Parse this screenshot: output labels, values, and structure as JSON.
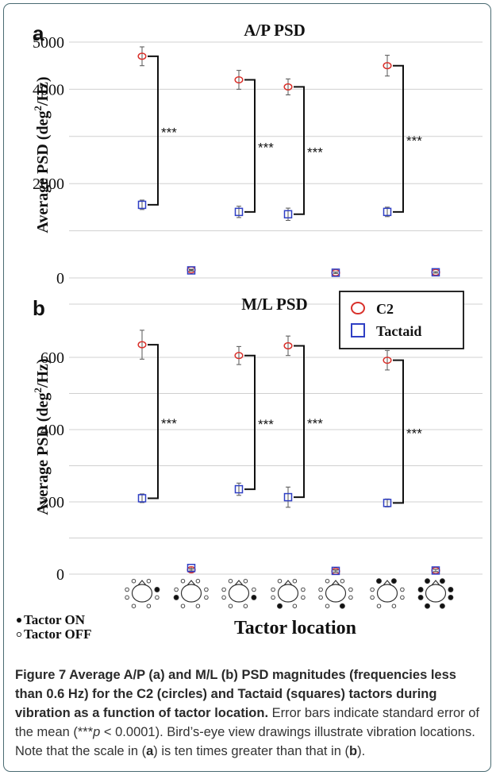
{
  "chart_data": [
    {
      "panel_label": "a",
      "type": "scatter",
      "title": "A/P PSD",
      "ylabel": "Average PSD (deg²/Hz)",
      "ylabel_main": "Average PSD (deg",
      "ylabel_sup": "2",
      "ylabel_end": "/Hz)",
      "ylim": [
        0,
        5000
      ],
      "yticks": [
        "0",
        "2000",
        "4000",
        "5000"
      ],
      "ytick_values": [
        0,
        2000,
        4000,
        5000
      ],
      "grid": true,
      "categories": [
        "1",
        "2",
        "3",
        "4",
        "5",
        "6",
        "7"
      ],
      "series": [
        {
          "name": "C2",
          "marker": "circle",
          "color": "#d9312b",
          "values": [
            4700,
            170,
            4200,
            4050,
            110,
            4500,
            120
          ],
          "errors": [
            200,
            15,
            200,
            170,
            15,
            220,
            15
          ]
        },
        {
          "name": "Tactaid",
          "marker": "square",
          "color": "#2f3fc4",
          "values": [
            1550,
            160,
            1400,
            1350,
            110,
            1400,
            120
          ],
          "errors": [
            100,
            15,
            120,
            130,
            15,
            100,
            15
          ]
        }
      ],
      "significance": [
        {
          "category": 0,
          "label": "***"
        },
        {
          "category": 2,
          "label": "***"
        },
        {
          "category": 3,
          "label": "***"
        },
        {
          "category": 5,
          "label": "***"
        }
      ]
    },
    {
      "panel_label": "b",
      "type": "scatter",
      "title": "M/L PSD",
      "ylabel": "Average PSD (deg²/Hz)",
      "ylabel_main": "Average PSD (deg",
      "ylabel_sup": "2",
      "ylabel_end": "/Hz)",
      "ylim": [
        0,
        700
      ],
      "yticks": [
        "0",
        "200",
        "400",
        "600"
      ],
      "ytick_values": [
        0,
        200,
        400,
        600
      ],
      "grid": true,
      "xlabel": "Tactor location",
      "legend_position": "top-right",
      "categories": [
        "1",
        "2",
        "3",
        "4",
        "5",
        "6",
        "7"
      ],
      "series": [
        {
          "name": "C2",
          "marker": "circle",
          "color": "#d9312b",
          "values": [
            635,
            12,
            605,
            632,
            8,
            592,
            10
          ],
          "errors": [
            40,
            3,
            25,
            27,
            3,
            27,
            3
          ]
        },
        {
          "name": "Tactaid",
          "marker": "square",
          "color": "#2f3fc4",
          "values": [
            210,
            17,
            235,
            213,
            9,
            197,
            10
          ],
          "errors": [
            12,
            3,
            17,
            28,
            3,
            11,
            3
          ]
        }
      ],
      "significance": [
        {
          "category": 0,
          "label": "***"
        },
        {
          "category": 2,
          "label": "***"
        },
        {
          "category": 3,
          "label": "***"
        },
        {
          "category": 5,
          "label": "***"
        }
      ]
    }
  ],
  "legend": {
    "c2": "C2",
    "tactaid": "Tactaid"
  },
  "tactor_legend": {
    "on": "Tactor ON",
    "off": "Tactor OFF"
  },
  "tactor_patterns": [
    [
      0,
      0,
      0,
      1,
      0,
      0,
      0,
      0
    ],
    [
      0,
      0,
      0,
      0,
      1,
      0,
      0,
      0
    ],
    [
      0,
      0,
      0,
      0,
      0,
      1,
      0,
      0
    ],
    [
      0,
      0,
      0,
      0,
      0,
      0,
      1,
      0
    ],
    [
      0,
      0,
      0,
      0,
      0,
      0,
      0,
      1
    ],
    [
      1,
      1,
      0,
      0,
      0,
      0,
      0,
      0
    ],
    [
      1,
      1,
      1,
      1,
      1,
      1,
      1,
      1
    ]
  ],
  "caption": {
    "bold": "Figure 7 Average A/P (a) and M/L (b) PSD magnitudes (frequencies less than 0.6 Hz) for the C2 (circles) and Tactaid (squares) tactors during vibration as a function of tactor location.",
    "text_1": " Error bars indicate standard error of the mean (***",
    "p": "p",
    "text_2": " < 0.0001). Bird’s-eye view drawings illustrate vibration locations. Note that the scale in (",
    "ref_a": "a",
    "text_3": ") is ten times greater than that in (",
    "ref_b": "b",
    "text_4": ")."
  }
}
